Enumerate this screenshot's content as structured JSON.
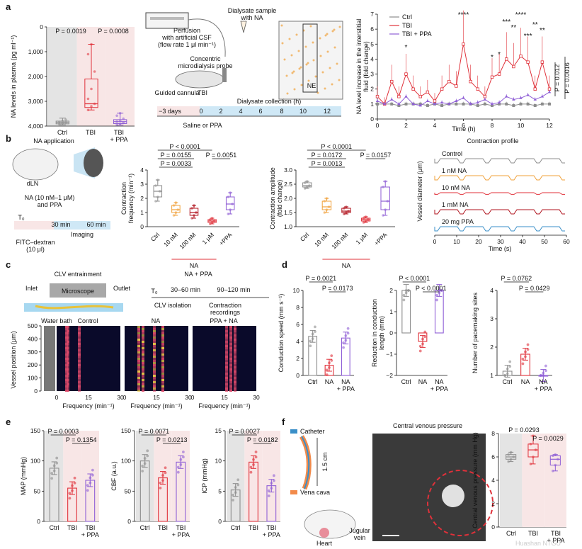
{
  "colors": {
    "ctrl": "#8c8c8c",
    "tbi": "#e0313a",
    "ppa": "#8f5fd6",
    "orange": "#f0a13a",
    "red_dark": "#b0131d",
    "blue": "#3a8fc8",
    "bg_gray": "#e4e4e4",
    "bg_pink": "#f8e6e6",
    "bg_blue": "#cfe8f6"
  },
  "watermark": "Huashan NTGU",
  "panel_a": {
    "label": "a",
    "plasma": {
      "ylabel": "NA levels in plasma (pg ml⁻¹)",
      "yticks": [
        "0",
        "1,000",
        "2,000",
        "3,000",
        "4,000"
      ],
      "groups": [
        "Ctrl",
        "TBI",
        "TBI\n+ PPA"
      ],
      "p1": "P = 0.0019",
      "p2": "P = 0.0008",
      "chart_data": {
        "type": "box",
        "categories": [
          "Ctrl",
          "TBI",
          "TBI + PPA"
        ],
        "ylim": [
          0,
          4000
        ],
        "medians": [
          150,
          900,
          180
        ],
        "q1": [
          90,
          750,
          100
        ],
        "q3": [
          200,
          1900,
          260
        ],
        "min": [
          50,
          650,
          40
        ],
        "max": [
          320,
          3300,
          520
        ],
        "points": [
          [
            80,
            120,
            150,
            170,
            200,
            260
          ],
          [
            650,
            800,
            900,
            1100,
            1500,
            2200,
            2900,
            3300
          ],
          [
            50,
            90,
            130,
            180,
            220,
            300,
            420,
            520
          ]
        ]
      }
    },
    "schematic": {
      "perfusion": "Perfusion\nwith artificial CSF\n(flow rate 1 μl min⁻¹)",
      "dialysate": "Dialysate sample\nwith NA",
      "probe": "Concentric\nmicrodialysis probe",
      "cannula": "Guided cannula",
      "tbi": "TBI",
      "ne": "NE",
      "collection": "Dialysate collection (h)",
      "saline": "Saline or PPA",
      "timeline": [
        "−3 days",
        "0",
        "2",
        "4",
        "6",
        "8",
        "10",
        "12"
      ]
    },
    "timecourse": {
      "ylabel": "NA level increase in the interstitial\nfluid (fold change)",
      "xlabel": "Time (h)",
      "xticks": [
        "0",
        "2",
        "4",
        "6",
        "8",
        "10",
        "12"
      ],
      "yticks": [
        "0",
        "1",
        "2",
        "3",
        "4",
        "5",
        "6",
        "7"
      ],
      "legend": [
        "Ctrl",
        "TBI",
        "TBI + PPA"
      ],
      "p1": "P = 0.012",
      "p2": "P = 0.0016",
      "stars": [
        "*",
        "****",
        "*",
        "*",
        "***",
        "**",
        "****",
        "***",
        "**",
        "**"
      ],
      "chart_data": {
        "type": "line",
        "x": [
          0,
          0.5,
          1,
          1.5,
          2,
          2.5,
          3,
          3.5,
          4,
          4.5,
          5,
          5.5,
          6,
          6.5,
          7,
          7.5,
          8,
          8.5,
          9,
          9.5,
          10,
          10.5,
          11,
          11.5,
          12
        ],
        "ylim": [
          0,
          7
        ],
        "series": [
          {
            "name": "Ctrl",
            "values": [
              1,
              1,
              1,
              0.9,
              1,
              1,
              1,
              0.9,
              1,
              0.9,
              1,
              1,
              1,
              1,
              0.9,
              1,
              0.9,
              1,
              1,
              0.9,
              1,
              1,
              0.9,
              1,
              1
            ]
          },
          {
            "name": "TBI",
            "values": [
              1.5,
              1,
              2.5,
              1.5,
              3,
              2,
              1.5,
              1.8,
              1.2,
              2,
              2.5,
              2.2,
              5,
              2.5,
              2,
              1.5,
              2.8,
              3,
              4,
              3.5,
              4.2,
              3.8,
              2,
              3.8,
              2
            ]
          },
          {
            "name": "TBI + PPA",
            "values": [
              1.2,
              1,
              1.3,
              1,
              1.5,
              1,
              0.9,
              1.2,
              1,
              1.1,
              1,
              1.2,
              1.4,
              1,
              1.1,
              1.3,
              1,
              1.1,
              1.5,
              1.3,
              1.4,
              1.6,
              1.3,
              1.5,
              1.8
            ]
          }
        ]
      }
    }
  },
  "panel_b": {
    "label": "b",
    "schematic": {
      "title": "NA application",
      "dln": "dLN",
      "conc": "NA (10 nM–1 μM)\nand PPA",
      "t0": "T₀",
      "t30": "30 min",
      "t60": "60 min",
      "imaging": "Imaging",
      "fitc": "FITC–dextran\n(10 μl)"
    },
    "freq": {
      "ylabel": "Contraction\nfrequency (min⁻¹)",
      "yticks": [
        "0",
        "1",
        "2",
        "3",
        "4"
      ],
      "cats": [
        "Ctrl",
        "10 nM",
        "100 nM",
        "1 μM",
        "+PPA"
      ],
      "na": "NA",
      "pvals": [
        "P < 0.0001",
        "P = 0.0155",
        "P = 0.0033",
        "P = 0.0051"
      ],
      "chart_data": {
        "type": "box",
        "categories": [
          "Ctrl",
          "10 nM",
          "100 nM",
          "1 μM",
          "+PPA"
        ],
        "ylim": [
          0,
          4
        ],
        "medians": [
          2.5,
          1.2,
          1.0,
          0.4,
          1.6
        ],
        "q1": [
          2.1,
          1.0,
          0.8,
          0.3,
          1.2
        ],
        "q3": [
          2.9,
          1.5,
          1.3,
          0.5,
          2.1
        ],
        "min": [
          1.8,
          0.8,
          0.6,
          0.2,
          0.9
        ],
        "max": [
          3.3,
          1.7,
          1.5,
          0.6,
          2.4
        ]
      }
    },
    "amp": {
      "ylabel": "Contraction amplitude\n(fold change)",
      "yticks": [
        "1.0",
        "1.5",
        "2.0",
        "2.5",
        "3.0"
      ],
      "cats": [
        "Ctrl",
        "10 nM",
        "100 nM",
        "1 μM",
        "+PPA"
      ],
      "na": "NA",
      "pvals": [
        "P < 0.0001",
        "P = 0.0172",
        "P = 0.0013",
        "P = 0.0157"
      ],
      "chart_data": {
        "type": "box",
        "categories": [
          "Ctrl",
          "10 nM",
          "100 nM",
          "1 μM",
          "+PPA"
        ],
        "ylim": [
          1,
          3
        ],
        "medians": [
          2.45,
          1.7,
          1.55,
          1.25,
          1.9
        ],
        "q1": [
          2.4,
          1.6,
          1.5,
          1.2,
          1.6
        ],
        "q3": [
          2.55,
          1.9,
          1.65,
          1.3,
          2.4
        ],
        "min": [
          2.35,
          1.5,
          1.45,
          1.15,
          1.4
        ],
        "max": [
          2.6,
          2.0,
          1.7,
          1.35,
          2.6
        ]
      }
    },
    "profile": {
      "title": "Contraction profile",
      "ylabel": "Vessel diameter (μm)",
      "xlabel": "Time (s)",
      "xticks": [
        "0",
        "10",
        "20",
        "30",
        "40",
        "50",
        "60"
      ],
      "traces": [
        "Control",
        "1 nM NA",
        "10 nM NA",
        "1 mM NA",
        "20 mg PPA"
      ]
    }
  },
  "panel_c": {
    "label": "c",
    "schematic": {
      "title": "CLV entrainment",
      "inlet": "Inlet",
      "outlet": "Outlet",
      "microscope": "Microscope",
      "bath": "Water bath",
      "napp": "NA + PPA",
      "t0": "T₀",
      "t1": "30–60 min",
      "t2": "90–120 min",
      "iso": "CLV isolation",
      "rec": "Contraction\nrecordings"
    },
    "heatmaps": {
      "ylabel": "Vessel position (μm)",
      "yticks": [
        "0",
        "100",
        "200",
        "300",
        "400",
        "500"
      ],
      "xlabel": "Frequency (min⁻¹)",
      "titles": [
        "Control",
        "NA",
        "PPA + NA"
      ],
      "xticks": [
        "0",
        "15",
        "30"
      ]
    }
  },
  "panel_d": {
    "label": "d",
    "speed": {
      "ylabel": "Conduction speed (mm s⁻¹)",
      "yticks": [
        "0",
        "2",
        "4",
        "6",
        "8",
        "10"
      ],
      "cats": [
        "Ctrl",
        "NA",
        "NA\n+ PPA"
      ],
      "pvals": [
        "P = 0.0021",
        "P = 0.0173"
      ],
      "chart_data": {
        "type": "bar",
        "categories": [
          "Ctrl",
          "NA",
          "NA + PPA"
        ],
        "values": [
          4.6,
          1.2,
          4.4
        ],
        "ylim": [
          0,
          10
        ]
      }
    },
    "red": {
      "ylabel": "Reduction in conduction\nlength (mm)",
      "yticks": [
        "−2",
        "−1",
        "0",
        "1",
        "2"
      ],
      "cats": [
        "Ctrl",
        "NA",
        "NA\n+ PPA"
      ],
      "pvals": [
        "P < 0.0001",
        "P < 0.0001"
      ],
      "chart_data": {
        "type": "bar",
        "categories": [
          "Ctrl",
          "NA",
          "NA + PPA"
        ],
        "values": [
          2,
          -0.4,
          2
        ],
        "ylim": [
          -2,
          2
        ]
      }
    },
    "sites": {
      "ylabel": "Number of pacemaking sites",
      "yticks": [
        "1",
        "2",
        "3",
        "4"
      ],
      "cats": [
        "Ctrl",
        "NA",
        "NA\n+ PPA"
      ],
      "pvals": [
        "P = 0.0762",
        "P = 0.0429"
      ],
      "chart_data": {
        "type": "bar",
        "categories": [
          "Ctrl",
          "NA",
          "NA + PPA"
        ],
        "values": [
          1.15,
          1.75,
          1
        ],
        "ylim": [
          1,
          4
        ]
      }
    }
  },
  "panel_e": {
    "label": "e",
    "map": {
      "ylabel": "MAP (mmHg)",
      "yticks": [
        "0",
        "50",
        "100",
        "150"
      ],
      "cats": [
        "Ctrl",
        "TBI",
        "TBI\n+ PPA"
      ],
      "pvals": [
        "P = 0.0003",
        "P = 0.1354"
      ],
      "chart_data": {
        "type": "bar",
        "categories": [
          "Ctrl",
          "TBI",
          "TBI + PPA"
        ],
        "values": [
          88,
          55,
          68
        ],
        "ylim": [
          0,
          150
        ]
      }
    },
    "cbf": {
      "ylabel": "CBF (a.u.)",
      "yticks": [
        "0",
        "50",
        "100",
        "150"
      ],
      "cats": [
        "Ctrl",
        "TBI",
        "TBI\n+ PPA"
      ],
      "pvals": [
        "P = 0.0071",
        "P = 0.0213"
      ],
      "chart_data": {
        "type": "bar",
        "categories": [
          "Ctrl",
          "TBI",
          "TBI + PPA"
        ],
        "values": [
          100,
          72,
          98
        ],
        "ylim": [
          0,
          150
        ]
      }
    },
    "icp": {
      "ylabel": "ICP (mmHg)",
      "yticks": [
        "0",
        "5",
        "10",
        "15"
      ],
      "cats": [
        "Ctrl",
        "TBI",
        "TBI\n+ PPA"
      ],
      "pvals": [
        "P = 0.0027",
        "P = 0.0182"
      ],
      "chart_data": {
        "type": "bar",
        "categories": [
          "Ctrl",
          "TBI",
          "TBI + PPA"
        ],
        "values": [
          5.2,
          9.8,
          5.9
        ],
        "ylim": [
          0,
          15
        ]
      }
    }
  },
  "panel_f": {
    "label": "f",
    "catheter": "Catheter",
    "vena": "Vena cava",
    "length": "1.5 cm",
    "heart": "Heart",
    "jugular": "Jugular\nvein",
    "photo_title": "Central venous pressure",
    "cvp": {
      "ylabel": "Central venous pressure (mm Hg)",
      "yticks": [
        "0",
        "2",
        "4",
        "6",
        "8"
      ],
      "cats": [
        "Ctrl",
        "TBI",
        "TBI\n+ PPA"
      ],
      "pvals": [
        "P = 0.0293",
        "P = 0.0029"
      ],
      "chart_data": {
        "type": "box",
        "categories": [
          "Ctrl",
          "TBI",
          "TBI + PPA"
        ],
        "ylim": [
          0,
          8
        ],
        "medians": [
          6,
          6.6,
          5.8
        ],
        "q1": [
          5.8,
          6.0,
          5.3
        ],
        "q3": [
          6.2,
          7.1,
          6.1
        ],
        "min": [
          5.6,
          5.4,
          4.8
        ],
        "max": [
          6.4,
          7.8,
          6.2
        ]
      }
    }
  }
}
